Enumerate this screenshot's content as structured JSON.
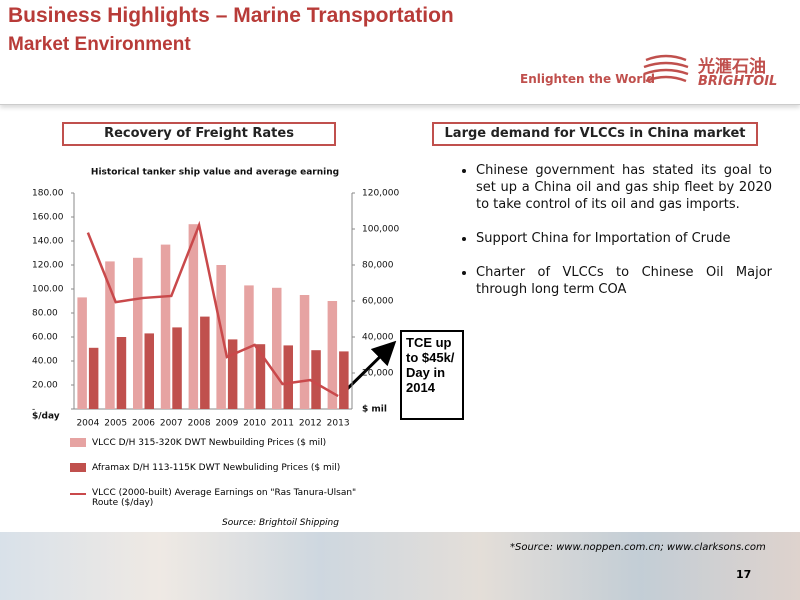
{
  "header": {
    "title": "Business Highlights – Marine Transportation",
    "subtitle": "Market Environment",
    "tagline": "Enlighten the World",
    "logo_cn": "光滙石油",
    "logo_en": "BRIGHTOIL"
  },
  "left_panel": {
    "heading": "Recovery of Freight Rates",
    "source": "Source: Brightoil Shipping"
  },
  "right_panel": {
    "heading": "Large demand for VLCCs in China market",
    "bullets": [
      "Chinese government has stated its goal to set up a China oil and gas ship fleet by 2020 to take control of its oil and gas imports.",
      "Support China for Importation of Crude",
      "Charter of VLCCs to Chinese Oil Major through long term COA"
    ]
  },
  "chart_data": {
    "type": "bar",
    "title": "Historical tanker ship value and average earning",
    "categories": [
      "2004",
      "2005",
      "2006",
      "2007",
      "2008",
      "2009",
      "2010",
      "2011",
      "2012",
      "2013"
    ],
    "series": [
      {
        "name": "VLCC D/H 315-320K DWT Newbuilding Prices ($ mil)",
        "color": "#e6a3a2",
        "values": [
          93,
          123,
          126,
          137,
          154,
          120,
          103,
          101,
          95,
          90
        ]
      },
      {
        "name": "Aframax D/H 113-115K DWT Newbuliding Prices ($ mil)",
        "color": "#c0504d",
        "values": [
          51,
          60,
          63,
          68,
          77,
          58,
          54,
          53,
          49,
          48
        ]
      },
      {
        "name": "VLCC (2000-built) Average Earnings on \"Ras Tanura-Ulsan\" Route ($/day)",
        "color": "#c9494b",
        "type": "line",
        "axis": "y2",
        "values": [
          98000,
          59400,
          61700,
          62800,
          102200,
          28900,
          35600,
          13900,
          16100,
          7200
        ]
      }
    ],
    "ylim": [
      0,
      180
    ],
    "yticks": [
      {
        "value": 0,
        "label": "-"
      },
      {
        "value": 20,
        "label": "20.00"
      },
      {
        "value": 40,
        "label": "40.00"
      },
      {
        "value": 60,
        "label": "60.00"
      },
      {
        "value": 80,
        "label": "80.00"
      },
      {
        "value": 100,
        "label": "100.00"
      },
      {
        "value": 120,
        "label": "120.00"
      },
      {
        "value": 140,
        "label": "140.00"
      },
      {
        "value": 160,
        "label": "160.00"
      },
      {
        "value": 180,
        "label": "180.00"
      }
    ],
    "y2lim": [
      0,
      120000
    ],
    "y2ticks": [
      {
        "value": 20000,
        "label": "20,000"
      },
      {
        "value": 40000,
        "label": "40,000"
      },
      {
        "value": 60000,
        "label": "60,000"
      },
      {
        "value": 80000,
        "label": "80,000"
      },
      {
        "value": 100000,
        "label": "100,000"
      },
      {
        "value": 120000,
        "label": "120,000"
      }
    ],
    "ylabel": "$/day",
    "y2label": "$ mil",
    "annotation": "TCE up to $45k/ Day in 2014"
  },
  "footer": {
    "source": "*Source:  www.noppen.com.cn; www.clarksons.com",
    "page": "17"
  }
}
